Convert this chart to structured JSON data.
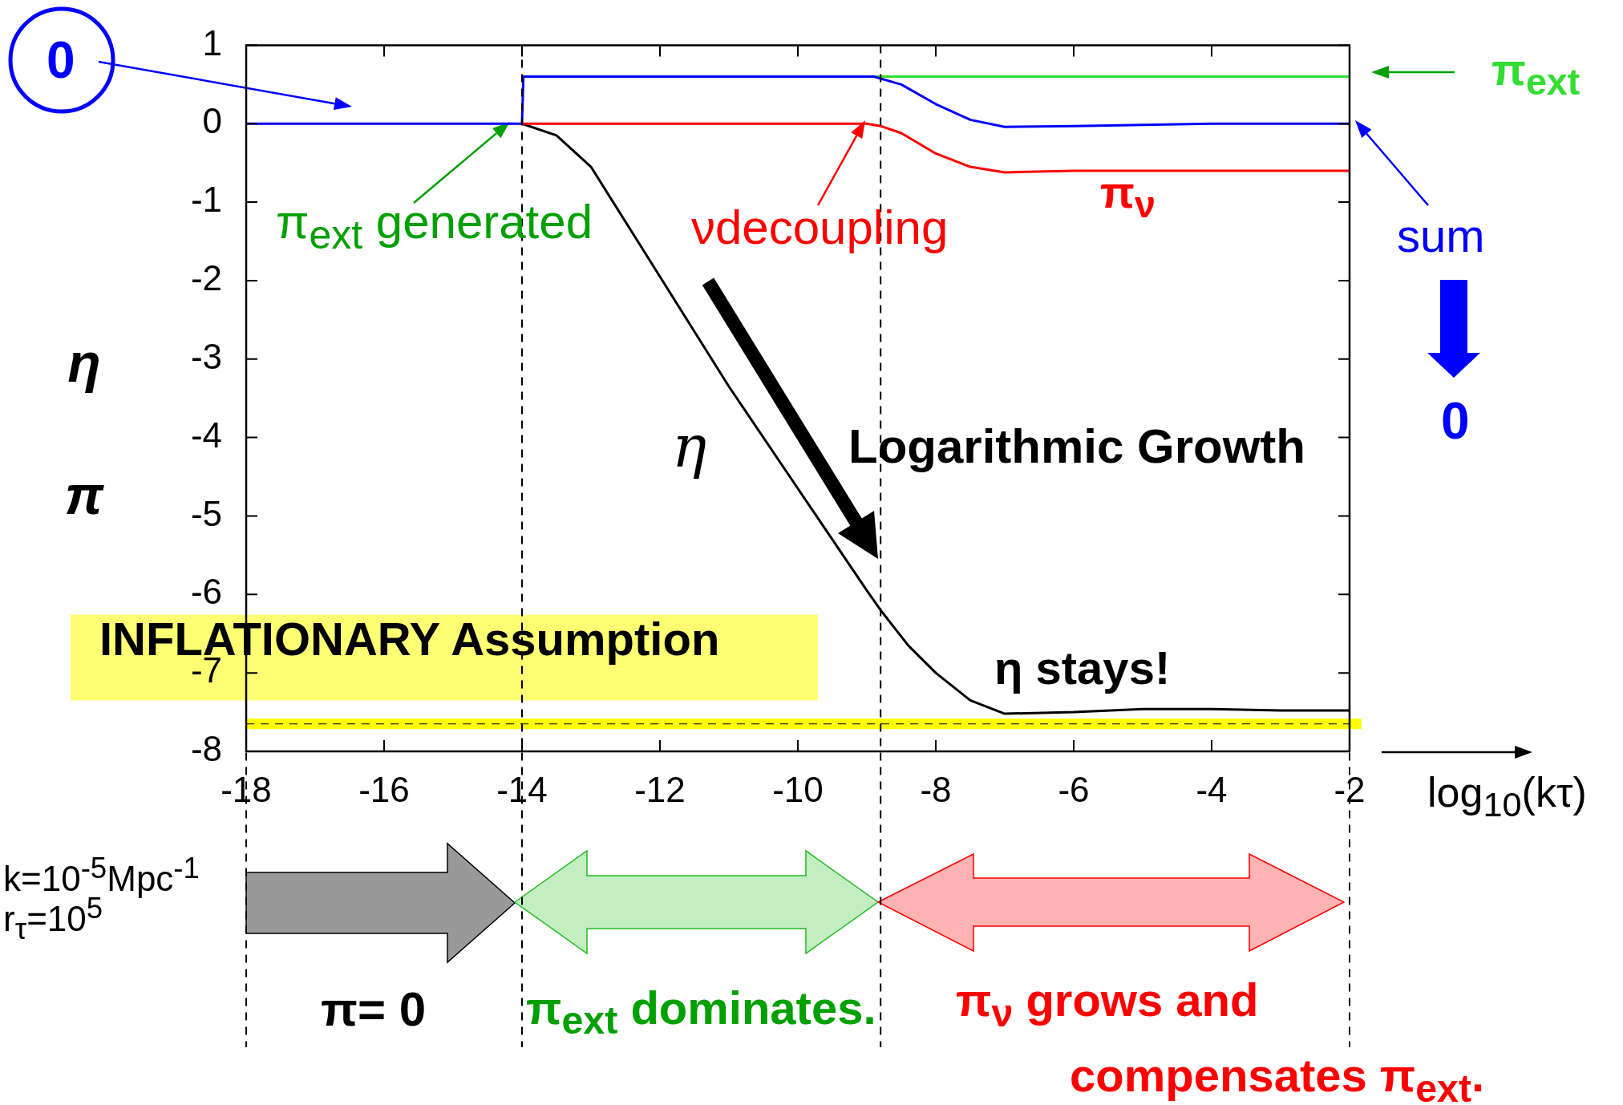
{
  "chart_data": {
    "type": "line",
    "xlabel": "log$_{10}$(kτ)",
    "ylabel": "η π",
    "marker": "none",
    "xlim": [
      -18,
      -2
    ],
    "xticks": [
      -18,
      -16,
      -14,
      -12,
      -10,
      -8,
      -6,
      -4,
      -2
    ],
    "ylim": [
      -8,
      1
    ],
    "yticks": [
      -8,
      -7,
      -6,
      -5,
      -4,
      -3,
      -2,
      -1,
      0,
      1
    ],
    "series": [
      {
        "name": "η",
        "color": "#000000",
        "x": [
          -14,
          -13.5,
          -13,
          -12.5,
          -12,
          -11,
          -10,
          -9,
          -8.8,
          -8.4,
          -8,
          -7.5,
          -7,
          -6,
          -5,
          -4,
          -3,
          -2
        ],
        "values": [
          0,
          -0.15,
          -0.55,
          -1.25,
          -1.95,
          -3.35,
          -4.65,
          -5.95,
          -6.2,
          -6.65,
          -7.0,
          -7.35,
          -7.52,
          -7.5,
          -7.46,
          -7.46,
          -7.48,
          -7.48
        ]
      },
      {
        "name": "π$_{ν}$",
        "color": "#ff0000",
        "x": [
          -14,
          -9,
          -8.8,
          -8.5,
          -8,
          -7.5,
          -7,
          -6,
          -2
        ],
        "values": [
          0,
          0,
          -0.03,
          -0.12,
          -0.38,
          -0.55,
          -0.62,
          -0.6,
          -0.6
        ]
      },
      {
        "name": "π$_{ext}$",
        "color": "#33dd33",
        "x": [
          -8.9,
          -2
        ],
        "values": [
          0.6,
          0.6
        ]
      },
      {
        "name": "sum",
        "color": "#0000ff",
        "x": [
          -18,
          -14,
          -13.98,
          -8.9,
          -8.5,
          -8,
          -7.5,
          -7,
          -6,
          -4,
          -2
        ],
        "values": [
          0,
          0,
          0.6,
          0.6,
          0.5,
          0.25,
          0.05,
          -0.04,
          -0.03,
          0,
          0
        ]
      }
    ],
    "ref_lines": [
      {
        "axis": "x",
        "value": -18,
        "color": "#000000",
        "line_style": "dashed"
      },
      {
        "axis": "x",
        "value": -14,
        "color": "#000000",
        "line_style": "dashed"
      },
      {
        "axis": "x",
        "value": -8.8,
        "color": "#000000",
        "line_style": "dashed"
      },
      {
        "axis": "x",
        "value": -2,
        "color": "#000000",
        "line_style": "dashed"
      },
      {
        "axis": "y",
        "value": -7.65,
        "color": "#ffff00"
      },
      {
        "axis": "y",
        "value": -7.65,
        "color": "#000000",
        "line_style": "dashed"
      }
    ],
    "annotations": [
      "0",
      "π$_{ext}$ generated",
      "νdecoupling",
      "0",
      "Logarithmic Growth",
      "η stays!",
      "INFLATIONARY Assumption",
      "k=10$^{-5}$Mpc$^{-1}$",
      "r$_{τ}$=10$^{5}$",
      "π= 0",
      "π$_{ext}$ dominates.",
      "π$_{ν}$ grows and compensates π$_{ext}$."
    ]
  }
}
